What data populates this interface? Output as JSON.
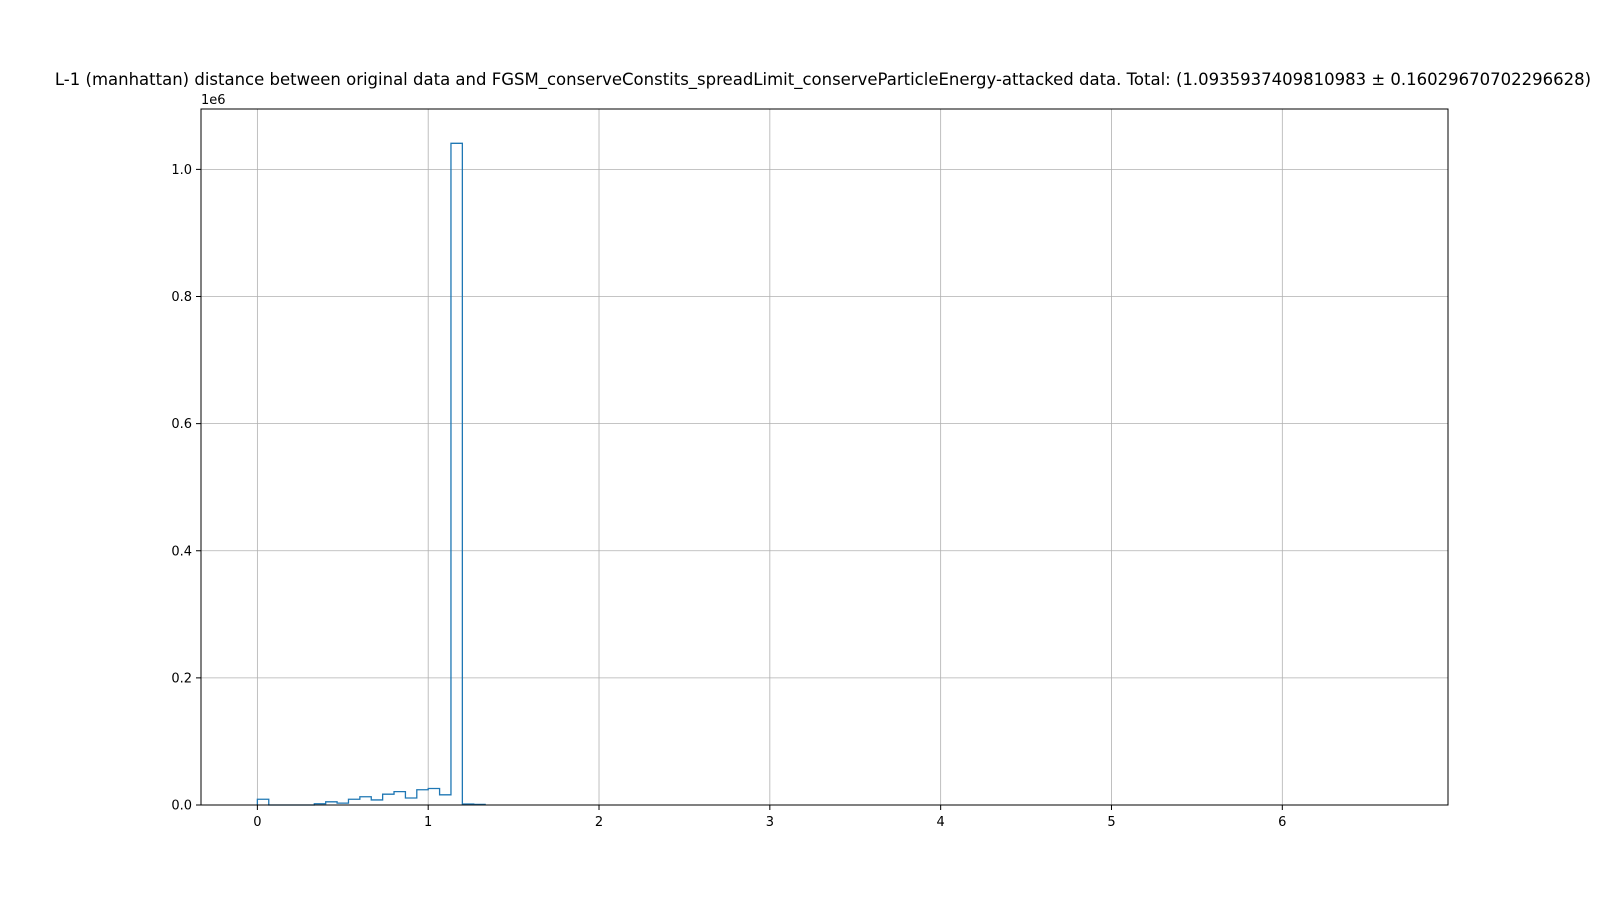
{
  "chart_data": {
    "type": "histogram",
    "title": "L-1 (manhattan) distance between original data and FGSM_conserveConstits_spreadLimit_conserveParticleEnergy-attacked data. Total: (1.0935937409810983 ± 0.16029670702296628)",
    "xlabel": "",
    "ylabel": "",
    "y_offset_label": "1e6",
    "xlim": [
      -0.33,
      6.97
    ],
    "ylim": [
      0,
      1.095
    ],
    "y_scale_factor": 1000000,
    "x_ticks": [
      0,
      1,
      2,
      3,
      4,
      5,
      6
    ],
    "x_tick_labels": [
      "0",
      "1",
      "2",
      "3",
      "4",
      "5",
      "6"
    ],
    "y_ticks": [
      0.0,
      0.2,
      0.4,
      0.6,
      0.8,
      1.0
    ],
    "y_tick_labels": [
      "0.0",
      "0.2",
      "0.4",
      "0.6",
      "0.8",
      "1.0"
    ],
    "grid": true,
    "histtype": "step",
    "series_color": "#1f77b4",
    "bins": [
      {
        "x0": 0.0,
        "x1": 0.0667,
        "value": 0.009
      },
      {
        "x0": 0.0667,
        "x1": 0.1333,
        "value": 0.0
      },
      {
        "x0": 0.1333,
        "x1": 0.2,
        "value": 0.0
      },
      {
        "x0": 0.2,
        "x1": 0.2667,
        "value": 0.0
      },
      {
        "x0": 0.2667,
        "x1": 0.3333,
        "value": 0.0
      },
      {
        "x0": 0.3333,
        "x1": 0.4,
        "value": 0.002
      },
      {
        "x0": 0.4,
        "x1": 0.4667,
        "value": 0.005
      },
      {
        "x0": 0.4667,
        "x1": 0.5333,
        "value": 0.003
      },
      {
        "x0": 0.5333,
        "x1": 0.6,
        "value": 0.009
      },
      {
        "x0": 0.6,
        "x1": 0.6667,
        "value": 0.013
      },
      {
        "x0": 0.6667,
        "x1": 0.7333,
        "value": 0.008
      },
      {
        "x0": 0.7333,
        "x1": 0.8,
        "value": 0.017
      },
      {
        "x0": 0.8,
        "x1": 0.8667,
        "value": 0.021
      },
      {
        "x0": 0.8667,
        "x1": 0.9333,
        "value": 0.011
      },
      {
        "x0": 0.9333,
        "x1": 1.0,
        "value": 0.024
      },
      {
        "x0": 1.0,
        "x1": 1.0667,
        "value": 0.026
      },
      {
        "x0": 1.0667,
        "x1": 1.1333,
        "value": 0.016
      },
      {
        "x0": 1.1333,
        "x1": 1.2,
        "value": 1.041
      },
      {
        "x0": 1.2,
        "x1": 1.2667,
        "value": 0.0015
      },
      {
        "x0": 1.2667,
        "x1": 1.3333,
        "value": 0.001
      }
    ]
  }
}
